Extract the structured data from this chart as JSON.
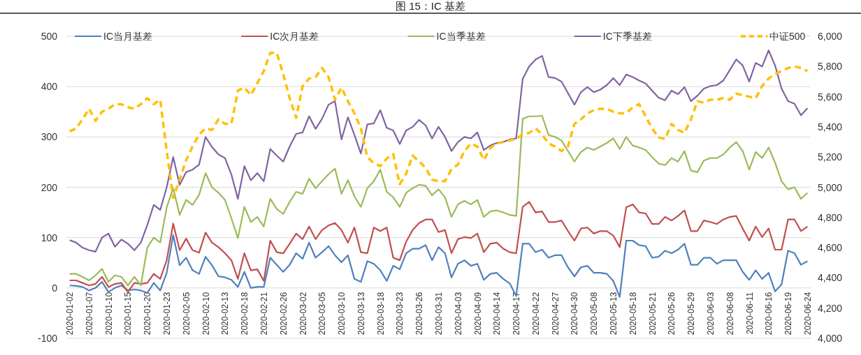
{
  "chart_data": {
    "type": "line",
    "title": "图 15：IC 基差",
    "categories": [
      "2020-01-02",
      null,
      null,
      "2020-01-07",
      null,
      null,
      "2020-01-10",
      null,
      null,
      "2020-01-15",
      null,
      null,
      "2020-01-20",
      null,
      null,
      "2020-01-23",
      null,
      null,
      "2020-02-05",
      null,
      null,
      "2020-02-10",
      null,
      null,
      "2020-02-13",
      null,
      null,
      "2020-02-18",
      null,
      null,
      "2020-02-21",
      null,
      null,
      "2020-02-26",
      null,
      null,
      "2020-03-02",
      null,
      null,
      "2020-03-05",
      null,
      null,
      "2020-03-10",
      null,
      null,
      "2020-03-13",
      null,
      null,
      "2020-03-18",
      null,
      null,
      "2020-03-23",
      null,
      null,
      "2020-03-26",
      null,
      null,
      "2020-03-31",
      null,
      null,
      "2020-04-03",
      null,
      null,
      "2020-04-09",
      null,
      null,
      "2020-04-14",
      null,
      null,
      "2020-04-17",
      null,
      null,
      "2020-04-22",
      null,
      null,
      "2020-04-27",
      null,
      null,
      "2020-04-30",
      null,
      null,
      "2020-05-08",
      null,
      null,
      "2020-05-13",
      null,
      null,
      "2020-05-18",
      null,
      null,
      "2020-05-21",
      null,
      null,
      "2020-05-26",
      null,
      null,
      "2020-05-29",
      null,
      null,
      "2020-06-03",
      null,
      null,
      "2020-06-08",
      null,
      null,
      "2020-06-11",
      null,
      null,
      "2020-06-16",
      null,
      null,
      "2020-06-19",
      null,
      null,
      "2020-06-24"
    ],
    "series": [
      {
        "name": "IC当月基差",
        "color": "#4f81bd",
        "values": [
          5,
          4,
          2,
          -5,
          0,
          12,
          -8,
          0,
          5,
          -5,
          -3,
          -5,
          -10,
          10,
          -5,
          30,
          105,
          45,
          60,
          35,
          28,
          62,
          45,
          23,
          21,
          16,
          2,
          32,
          0,
          2,
          2,
          60,
          46,
          32,
          46,
          69,
          58,
          90,
          60,
          71,
          83,
          65,
          51,
          65,
          18,
          12,
          53,
          48,
          35,
          14,
          44,
          37,
          69,
          78,
          78,
          85,
          55,
          81,
          69,
          21,
          48,
          55,
          44,
          48,
          16,
          28,
          30,
          18,
          9,
          -16,
          88,
          88,
          71,
          76,
          60,
          65,
          65,
          41,
          23,
          41,
          44,
          30,
          30,
          28,
          14,
          -18,
          94,
          94,
          85,
          83,
          60,
          62,
          74,
          69,
          76,
          88,
          46,
          46,
          60,
          60,
          48,
          55,
          55,
          55,
          32,
          16,
          35,
          18,
          30,
          -7,
          7,
          74,
          69,
          46,
          53
        ]
      },
      {
        "name": "IC次月基差",
        "color": "#c0504d",
        "values": [
          15,
          15,
          10,
          5,
          8,
          22,
          2,
          8,
          10,
          -8,
          10,
          8,
          10,
          28,
          18,
          55,
          128,
          75,
          98,
          75,
          70,
          110,
          90,
          81,
          69,
          55,
          18,
          69,
          35,
          37,
          14,
          94,
          71,
          69,
          88,
          108,
          97,
          122,
          97,
          115,
          124,
          129,
          115,
          90,
          120,
          71,
          69,
          120,
          113,
          120,
          60,
          55,
          92,
          115,
          129,
          136,
          136,
          111,
          115,
          69,
          97,
          101,
          99,
          108,
          71,
          88,
          90,
          78,
          71,
          69,
          161,
          171,
          150,
          152,
          131,
          131,
          134,
          113,
          94,
          118,
          120,
          108,
          113,
          113,
          104,
          81,
          160,
          166,
          150,
          148,
          127,
          127,
          141,
          134,
          143,
          154,
          113,
          113,
          134,
          131,
          127,
          136,
          141,
          143,
          118,
          94,
          122,
          101,
          118,
          76,
          76,
          136,
          136,
          113,
          122
        ]
      },
      {
        "name": "IC当季基差",
        "color": "#9bbb59",
        "values": [
          28,
          28,
          22,
          15,
          25,
          38,
          12,
          25,
          22,
          5,
          22,
          5,
          80,
          100,
          90,
          160,
          198,
          145,
          175,
          165,
          185,
          228,
          200,
          189,
          175,
          138,
          99,
          161,
          131,
          141,
          122,
          177,
          157,
          147,
          171,
          191,
          187,
          217,
          198,
          212,
          226,
          237,
          187,
          214,
          182,
          161,
          198,
          212,
          235,
          191,
          180,
          161,
          189,
          198,
          205,
          203,
          184,
          196,
          180,
          141,
          166,
          173,
          166,
          175,
          141,
          152,
          154,
          150,
          145,
          143,
          336,
          341,
          341,
          342,
          304,
          300,
          293,
          272,
          251,
          270,
          279,
          274,
          281,
          288,
          297,
          276,
          300,
          283,
          279,
          274,
          260,
          247,
          244,
          258,
          251,
          272,
          233,
          230,
          253,
          258,
          258,
          265,
          279,
          290,
          272,
          235,
          270,
          258,
          279,
          249,
          212,
          196,
          200,
          177,
          189
        ]
      },
      {
        "name": "IC下季基差",
        "color": "#8064a2",
        "values": [
          95,
          90,
          80,
          75,
          72,
          100,
          108,
          82,
          96,
          88,
          75,
          90,
          125,
          165,
          155,
          200,
          260,
          205,
          230,
          235,
          245,
          300,
          280,
          265,
          258,
          225,
          177,
          242,
          214,
          228,
          212,
          276,
          263,
          251,
          281,
          306,
          309,
          341,
          316,
          336,
          364,
          371,
          295,
          339,
          304,
          267,
          325,
          327,
          353,
          318,
          313,
          286,
          313,
          320,
          334,
          323,
          297,
          320,
          300,
          272,
          290,
          300,
          297,
          309,
          274,
          283,
          288,
          290,
          295,
          297,
          415,
          440,
          454,
          461,
          419,
          417,
          410,
          387,
          364,
          389,
          399,
          389,
          394,
          403,
          417,
          403,
          424,
          419,
          412,
          406,
          392,
          378,
          373,
          392,
          385,
          399,
          371,
          382,
          396,
          401,
          403,
          412,
          433,
          454,
          442,
          410,
          447,
          440,
          472,
          442,
          396,
          371,
          366,
          343,
          357
        ]
      },
      {
        "name": "中证500",
        "color": "#ffc000",
        "axis": "y2",
        "line_style": "dashed",
        "values": [
          5370,
          5390,
          5450,
          5520,
          5440,
          5500,
          5520,
          5550,
          5550,
          5530,
          5520,
          5550,
          5590,
          5550,
          5580,
          5240,
          4930,
          5050,
          5180,
          5270,
          5350,
          5390,
          5380,
          5450,
          5420,
          5420,
          5640,
          5660,
          5610,
          5690,
          5770,
          5890,
          5890,
          5750,
          5590,
          5460,
          5670,
          5720,
          5730,
          5790,
          5730,
          5580,
          5660,
          5570,
          5490,
          5390,
          5200,
          5160,
          5140,
          5190,
          5220,
          5020,
          5090,
          5210,
          5170,
          5130,
          5050,
          5040,
          5040,
          5120,
          5150,
          5240,
          5290,
          5270,
          5180,
          5260,
          5290,
          5300,
          5310,
          5320,
          5350,
          5360,
          5390,
          5350,
          5290,
          5270,
          5240,
          5270,
          5420,
          5450,
          5490,
          5510,
          5520,
          5520,
          5500,
          5490,
          5490,
          5530,
          5550,
          5470,
          5390,
          5330,
          5320,
          5420,
          5380,
          5360,
          5450,
          5570,
          5560,
          5580,
          5580,
          5590,
          5580,
          5620,
          5610,
          5600,
          5590,
          5670,
          5720,
          5750,
          5770,
          5790,
          5800,
          5790,
          5770
        ]
      }
    ],
    "ylim": [
      -100,
      500
    ],
    "yticks": [
      -100,
      0,
      100,
      200,
      300,
      400,
      500
    ],
    "y2lim": [
      4000,
      6000
    ],
    "y2ticks": [
      {
        "value": 4000,
        "label": "4,000"
      },
      {
        "value": 4200,
        "label": "4,200"
      },
      {
        "value": 4400,
        "label": "4,400"
      },
      {
        "value": 4600,
        "label": "4,600"
      },
      {
        "value": 4800,
        "label": "4,800"
      },
      {
        "value": 5000,
        "label": "5,000"
      },
      {
        "value": 5200,
        "label": "5,200"
      },
      {
        "value": 5400,
        "label": "5,400"
      },
      {
        "value": 5600,
        "label": "5,600"
      },
      {
        "value": 5800,
        "label": "5,800"
      },
      {
        "value": 6000,
        "label": "6,000"
      }
    ],
    "grid": "y",
    "legend": "top"
  }
}
